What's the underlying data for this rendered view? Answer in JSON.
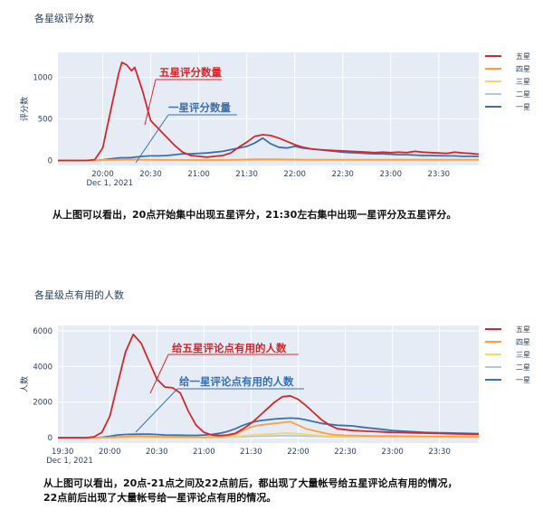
{
  "charts": [
    {
      "title": "各星级评分数",
      "caption_lines": [
        "从上图可以看出，20点开始集中出现五星评分，21:30左右集中出现一星评分及五星评分。"
      ],
      "chart_data": {
        "type": "line",
        "title": "各星级评分数",
        "xlabel": "",
        "ylabel": "评分数",
        "x_start_label": "Dec 1, 2021",
        "x_ticks": [
          "20:00",
          "20:30",
          "21:00",
          "21:30",
          "22:00",
          "22:30",
          "23:00",
          "23:30"
        ],
        "x_tick_minutes": [
          60,
          90,
          120,
          150,
          180,
          210,
          240,
          270
        ],
        "x_range_minutes": [
          32,
          295
        ],
        "y_ticks": [
          0,
          500,
          1000
        ],
        "ylim": [
          -60,
          1300
        ],
        "grid": true,
        "legend_placement": "right",
        "x_minutes": [
          32,
          50,
          55,
          60,
          65,
          70,
          72,
          75,
          78,
          80,
          85,
          90,
          95,
          100,
          105,
          110,
          115,
          120,
          125,
          130,
          135,
          140,
          145,
          150,
          155,
          160,
          165,
          170,
          175,
          180,
          185,
          190,
          195,
          200,
          205,
          210,
          215,
          220,
          225,
          230,
          235,
          240,
          245,
          250,
          255,
          260,
          265,
          270,
          275,
          280,
          285,
          290,
          295
        ],
        "series": [
          {
            "name": "五星",
            "color": "#d62728",
            "values": [
              0,
              0,
              10,
              150,
              600,
              1050,
              1180,
              1150,
              1080,
              1120,
              830,
              480,
              380,
              280,
              180,
              100,
              60,
              50,
              40,
              50,
              60,
              90,
              160,
              220,
              290,
              310,
              300,
              270,
              230,
              190,
              160,
              140,
              130,
              125,
              120,
              115,
              110,
              105,
              100,
              95,
              100,
              95,
              100,
              95,
              110,
              100,
              95,
              90,
              85,
              100,
              90,
              85,
              75
            ]
          },
          {
            "name": "四星",
            "color": "#ff9f40",
            "values": [
              0,
              0,
              0,
              5,
              8,
              10,
              10,
              12,
              12,
              12,
              10,
              10,
              8,
              8,
              6,
              6,
              6,
              5,
              5,
              5,
              6,
              8,
              10,
              12,
              14,
              15,
              15,
              14,
              12,
              12,
              10,
              10,
              10,
              10,
              10,
              10,
              10,
              10,
              10,
              10,
              10,
              10,
              10,
              10,
              10,
              10,
              10,
              10,
              10,
              10,
              10,
              10,
              10
            ]
          },
          {
            "name": "三星",
            "color": "#f5d76e",
            "values": [
              0,
              0,
              0,
              3,
              4,
              5,
              5,
              5,
              5,
              5,
              5,
              5,
              4,
              4,
              4,
              4,
              3,
              3,
              3,
              3,
              3,
              4,
              5,
              6,
              6,
              6,
              6,
              6,
              5,
              5,
              5,
              5,
              5,
              5,
              5,
              5,
              5,
              5,
              5,
              5,
              5,
              5,
              5,
              5,
              5,
              5,
              5,
              5,
              5,
              5,
              5,
              5,
              5
            ]
          },
          {
            "name": "二星",
            "color": "#aec7e8",
            "values": [
              0,
              0,
              0,
              2,
              3,
              3,
              3,
              3,
              3,
              3,
              3,
              3,
              3,
              3,
              3,
              3,
              2,
              2,
              2,
              2,
              2,
              3,
              3,
              4,
              4,
              4,
              4,
              4,
              3,
              3,
              3,
              3,
              3,
              3,
              3,
              3,
              3,
              3,
              3,
              3,
              3,
              3,
              3,
              3,
              3,
              3,
              3,
              3,
              3,
              3,
              3,
              3,
              3
            ]
          },
          {
            "name": "一星",
            "color": "#3a6fb0",
            "values": [
              0,
              0,
              0,
              8,
              20,
              30,
              32,
              32,
              35,
              40,
              50,
              55,
              55,
              60,
              70,
              80,
              80,
              85,
              90,
              100,
              110,
              130,
              150,
              170,
              210,
              270,
              200,
              160,
              150,
              170,
              150,
              140,
              130,
              120,
              110,
              100,
              95,
              90,
              85,
              80,
              80,
              75,
              70,
              70,
              65,
              60,
              60,
              58,
              55,
              55,
              50,
              50,
              48
            ]
          }
        ],
        "annotations": [
          {
            "text": "五星评分数量",
            "color": "#d62728"
          },
          {
            "text": "一星评分数量",
            "color": "#3a6fb0"
          }
        ]
      }
    },
    {
      "title": "各星级点有用的人数",
      "caption_lines": [
        "从上图可以看出，20点-21点之间及22点前后，都出现了大量帐号给五星评论点有用的情况，",
        "22点前后出现了大量帐号给一星评论点有用的情况。"
      ],
      "chart_data": {
        "type": "line",
        "title": "各星级点有用的人数",
        "xlabel": "",
        "ylabel": "人数",
        "x_start_label": "Dec 1, 2021",
        "x_ticks": [
          "19:30",
          "20:00",
          "20:30",
          "21:00",
          "21:30",
          "22:00",
          "22:30",
          "23:00",
          "23:30"
        ],
        "x_tick_minutes": [
          30,
          60,
          90,
          120,
          150,
          180,
          210,
          240,
          270
        ],
        "x_range_minutes": [
          27,
          295
        ],
        "y_ticks": [
          0,
          2000,
          4000,
          6000
        ],
        "ylim": [
          -300,
          6300
        ],
        "grid": true,
        "legend_placement": "right",
        "x_minutes": [
          27,
          45,
          50,
          55,
          60,
          65,
          70,
          75,
          80,
          85,
          90,
          95,
          100,
          105,
          110,
          115,
          120,
          125,
          130,
          135,
          140,
          145,
          150,
          155,
          160,
          165,
          170,
          175,
          180,
          185,
          190,
          195,
          200,
          205,
          210,
          215,
          220,
          225,
          230,
          235,
          240,
          245,
          250,
          255,
          260,
          265,
          270,
          275,
          280,
          285,
          290,
          295
        ],
        "series": [
          {
            "name": "五星",
            "color": "#d62728",
            "values": [
              0,
              0,
              50,
              300,
              1200,
              3000,
              4800,
              5800,
              5300,
              4300,
              3300,
              2850,
              2800,
              2500,
              1500,
              700,
              300,
              150,
              120,
              150,
              250,
              500,
              800,
              1200,
              1600,
              2000,
              2300,
              2350,
              2150,
              1800,
              1400,
              1000,
              700,
              500,
              450,
              400,
              380,
              360,
              340,
              320,
              300,
              290,
              280,
              270,
              260,
              250,
              240,
              230,
              220,
              210,
              200,
              190
            ]
          },
          {
            "name": "四星",
            "color": "#ff9f40",
            "values": [
              0,
              0,
              0,
              10,
              20,
              40,
              60,
              80,
              80,
              70,
              60,
              50,
              40,
              40,
              30,
              30,
              30,
              40,
              60,
              100,
              200,
              400,
              600,
              700,
              750,
              800,
              850,
              900,
              700,
              500,
              400,
              300,
              200,
              150,
              130,
              120,
              110,
              100,
              90,
              90,
              90,
              85,
              80,
              80,
              75,
              70,
              70,
              65,
              60,
              60,
              55,
              50
            ]
          },
          {
            "name": "三星",
            "color": "#f5d76e",
            "values": [
              0,
              0,
              0,
              5,
              10,
              15,
              20,
              25,
              25,
              25,
              20,
              20,
              15,
              15,
              15,
              15,
              15,
              20,
              30,
              40,
              60,
              100,
              150,
              180,
              200,
              220,
              250,
              260,
              220,
              180,
              140,
              110,
              90,
              80,
              70,
              65,
              60,
              55,
              50,
              50,
              50,
              45,
              45,
              40,
              40,
              40,
              40,
              35,
              35,
              35,
              30,
              30
            ]
          },
          {
            "name": "二星",
            "color": "#aec7e8",
            "values": [
              0,
              0,
              0,
              3,
              5,
              8,
              10,
              12,
              12,
              12,
              10,
              10,
              8,
              8,
              8,
              8,
              8,
              10,
              15,
              20,
              30,
              50,
              70,
              80,
              90,
              100,
              110,
              115,
              100,
              90,
              70,
              60,
              50,
              45,
              40,
              38,
              36,
              34,
              32,
              30,
              30,
              28,
              28,
              26,
              26,
              25,
              25,
              24,
              24,
              23,
              22,
              22
            ]
          },
          {
            "name": "一星",
            "color": "#3a6fb0",
            "values": [
              0,
              0,
              0,
              20,
              80,
              150,
              180,
              190,
              200,
              200,
              180,
              150,
              140,
              140,
              130,
              130,
              150,
              180,
              250,
              350,
              500,
              700,
              850,
              950,
              1000,
              1050,
              1080,
              1100,
              1080,
              1000,
              900,
              800,
              750,
              700,
              680,
              660,
              600,
              550,
              500,
              450,
              400,
              380,
              350,
              330,
              300,
              290,
              280,
              270,
              260,
              250,
              240,
              230
            ]
          }
        ],
        "annotations": [
          {
            "text": "给五星评论点有用的人数",
            "color": "#d62728"
          },
          {
            "text": "给一星评论点有用的人数",
            "color": "#3a6fb0"
          }
        ]
      }
    }
  ]
}
